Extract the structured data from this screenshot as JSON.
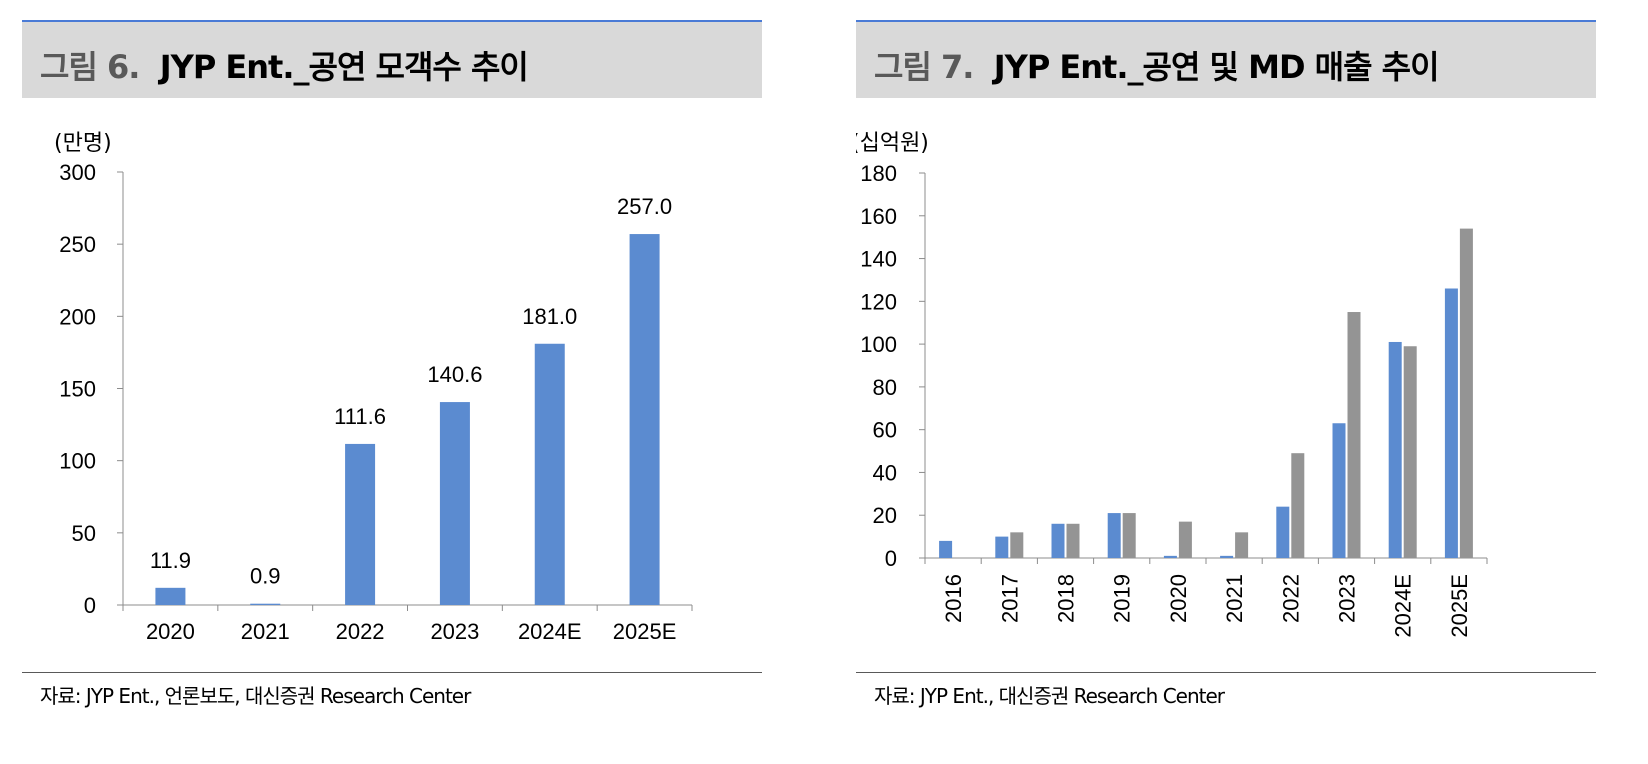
{
  "left": {
    "fig_num": "그림 6.",
    "fig_title": "JYP Ent._공연 모객수 추이",
    "source": "자료: JYP Ent., 언론보도, 대신증권 Research Center"
  },
  "right": {
    "fig_num": "그림 7.",
    "fig_title": "JYP Ent._공연 및 MD 매출 추이",
    "source": "자료: JYP Ent., 대신증권 Research Center"
  },
  "chart_data": [
    {
      "type": "bar",
      "title": "",
      "ylabel": "(만명)",
      "xlabel": "",
      "categories": [
        "2020",
        "2021",
        "2022",
        "2023",
        "2024E",
        "2025E"
      ],
      "values": [
        11.9,
        0.9,
        111.6,
        140.6,
        181.0,
        257.0
      ],
      "data_labels": [
        "11.9",
        "0.9",
        "111.6",
        "140.6",
        "181.0",
        "257.0"
      ],
      "ylim": [
        0,
        300
      ],
      "yticks": [
        0,
        50,
        100,
        150,
        200,
        250,
        300
      ],
      "grid": false,
      "legend": "none",
      "color": "#5b8bd0"
    },
    {
      "type": "bar",
      "title": "",
      "ylabel": "(십억원)",
      "xlabel": "",
      "categories": [
        "2016",
        "2017",
        "2018",
        "2019",
        "2020",
        "2021",
        "2022",
        "2023",
        "2024E",
        "2025E"
      ],
      "series": [
        {
          "values": [
            8,
            10,
            16,
            21,
            1,
            1,
            24,
            63,
            101,
            126
          ],
          "color": "#5b8bd0"
        },
        {
          "values": [
            0,
            12,
            16,
            21,
            17,
            12,
            49,
            115,
            99,
            154
          ],
          "color": "#949494"
        }
      ],
      "ylim": [
        0,
        180
      ],
      "yticks": [
        0,
        20,
        40,
        60,
        80,
        100,
        120,
        140,
        160,
        180
      ],
      "grid": false,
      "legend": "none",
      "x_tick_rotation": "vertical"
    }
  ]
}
